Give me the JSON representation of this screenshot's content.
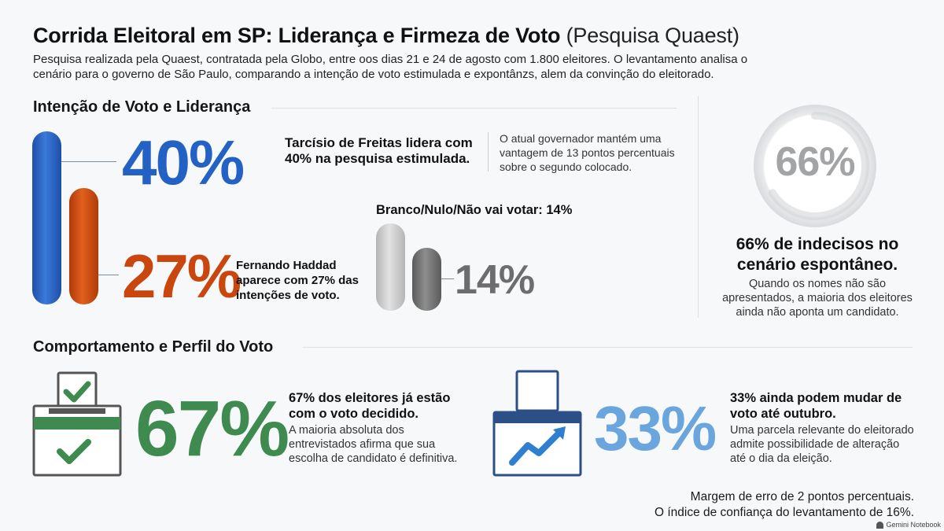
{
  "header": {
    "title_main": "Corrida Eleitoral em SP: Liderança e Firmeza de Voto",
    "title_sub": "(Pesquisa Quaest)",
    "intro": "Pesquisa realizada pela Quaest, contratada pela Globo, entre oos dias 21 e 24 de agosto com 1.800 eleitores. O levantamento analisa o cenário para o governo de São Paulo, comparando a intenção de voto estimulada e expontânzs, alem da convinção do eleitorado."
  },
  "section1": {
    "heading": "Intenção de Voto e Liderança",
    "tarcisio": {
      "value_label": "40%",
      "title": "Tarcísio de Freitas lidera com 40% na pesquisa estimulada.",
      "note": "O atual governador mantém uma vantagem de 13 pontos percentuais sobre o segundo colocado."
    },
    "haddad": {
      "value_label": "27%",
      "title": "Fernando Haddad aparece com 27% das intenções de voto."
    },
    "branco": {
      "title": "Branco/Nulo/Não vai votar: 14%",
      "value_label": "14%"
    },
    "indecisos": {
      "value_label": "66%",
      "title": "66% de indecisos no cenário espontâneo.",
      "note": "Quando os nomes não são apresentados, a maioria dos eleitores ainda não aponta um candidato."
    }
  },
  "section2": {
    "heading": "Comportamento e Perfil do Voto",
    "decided": {
      "value_label": "67%",
      "title": "67% dos eleitores já estão com o voto decidido.",
      "note": "A maioria absoluta dos entrevistados afirma que sua escolha de candidato é definitiva."
    },
    "may_change": {
      "value_label": "33%",
      "title": "33% ainda podem mudar de voto até outubro.",
      "note": "Uma parcela relevante do eleitorado admite possibilidade de alteração até o dia da eleição."
    }
  },
  "footer": {
    "margin_note": "Margem de erro de 2 pontos percentuais.",
    "confidence_note": "O índice de confiança do levantamento de 16%.",
    "watermark": "Gemini Notebook"
  },
  "colors": {
    "tarcisio_blue": "#2461c4",
    "haddad_orange": "#c9460f",
    "branco_gray": "#7a7a7a",
    "decided_green": "#3e8a4f",
    "change_blue": "#6aa6dd",
    "icon_navy": "#2c4f88"
  },
  "chart_data": [
    {
      "type": "bar",
      "categories": [
        "Tarcísio de Freitas",
        "Fernando Haddad"
      ],
      "values": [
        40,
        27
      ],
      "unit": "%"
    },
    {
      "type": "bar",
      "categories": [
        "Branco/Nulo/Não vai votar"
      ],
      "values": [
        14
      ],
      "unit": "%"
    },
    {
      "type": "pie",
      "categories": [
        "indecisos"
      ],
      "values": [
        66
      ],
      "unit": "%"
    },
    {
      "type": "bar",
      "categories": [
        "voto decidido",
        "podem mudar de voto"
      ],
      "values": [
        67,
        33
      ],
      "unit": "%"
    }
  ]
}
